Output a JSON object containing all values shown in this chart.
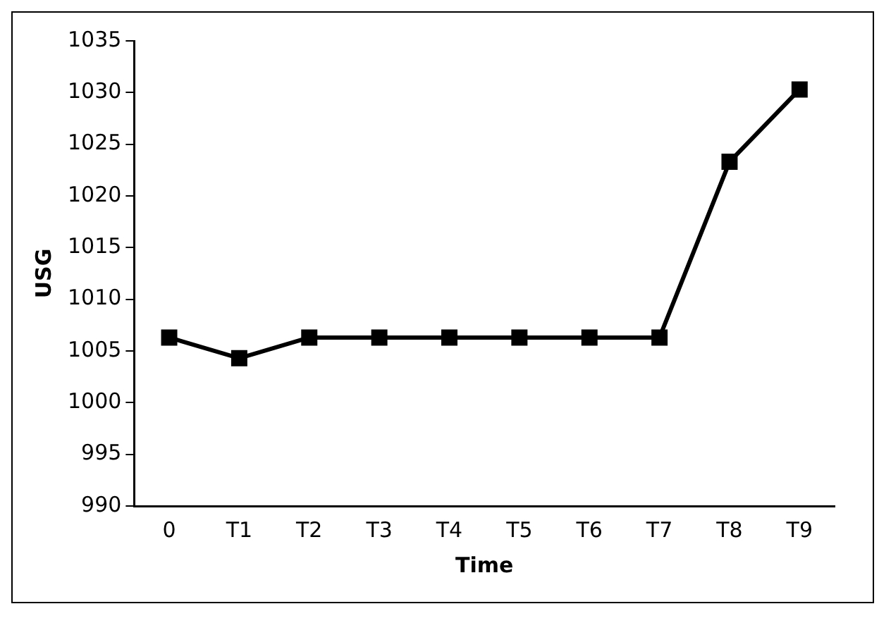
{
  "chart_data": {
    "type": "line",
    "xlabel": "Time",
    "ylabel": "USG",
    "categories": [
      "0",
      "T1",
      "T2",
      "T3",
      "T4",
      "T5",
      "T6",
      "T7",
      "T8",
      "T9"
    ],
    "values": [
      1006.3,
      1004.3,
      1006.3,
      1006.3,
      1006.3,
      1006.3,
      1006.3,
      1006.3,
      1023.3,
      1030.3
    ],
    "color": "#000000",
    "marker": "square",
    "line_style": "solid",
    "ylim": [
      990,
      1035
    ],
    "yticks": [
      990,
      995,
      1000,
      1005,
      1010,
      1015,
      1020,
      1025,
      1030,
      1035
    ],
    "grid": false,
    "legend": false
  }
}
